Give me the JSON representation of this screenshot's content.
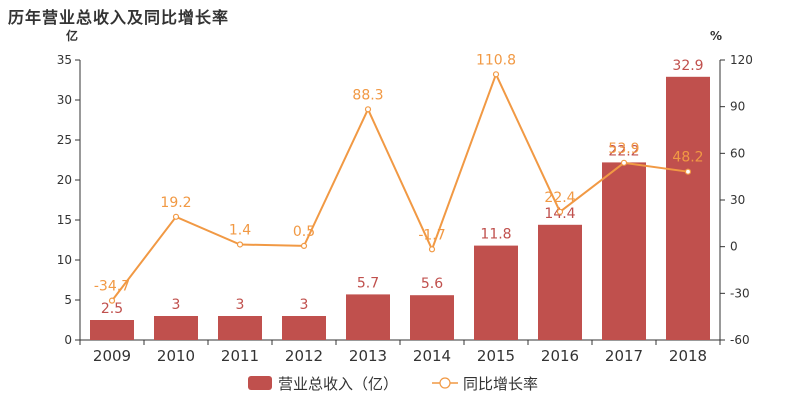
{
  "title": "历年营业总收入及同比增长率",
  "chart_data": {
    "type": "bar",
    "categories": [
      "2009",
      "2010",
      "2011",
      "2012",
      "2013",
      "2014",
      "2015",
      "2016",
      "2017",
      "2018"
    ],
    "series": [
      {
        "name": "营业总收入（亿）",
        "type": "bar",
        "axis": "left",
        "values": [
          2.5,
          3,
          3,
          3,
          5.7,
          5.6,
          11.8,
          14.4,
          22.2,
          32.9
        ],
        "labels": [
          "2.5",
          "3",
          "3",
          "3",
          "5.7",
          "5.6",
          "11.8",
          "14.4",
          "22.2",
          "32.9"
        ],
        "color": "#c0504d"
      },
      {
        "name": "同比增长率",
        "type": "line",
        "axis": "right",
        "values": [
          -34.7,
          19.2,
          1.4,
          0.5,
          88.3,
          -1.7,
          110.8,
          22.4,
          53.9,
          48.2
        ],
        "labels": [
          "-34.7",
          "19.2",
          "1.4",
          "0.5",
          "88.3",
          "-1.7",
          "110.8",
          "22.4",
          "53.9",
          "48.2"
        ],
        "color": "#f19944"
      }
    ],
    "y_left": {
      "unit": "亿",
      "min": 0,
      "max": 35,
      "ticks": [
        0,
        5,
        10,
        15,
        20,
        25,
        30,
        35
      ]
    },
    "y_right": {
      "unit": "%",
      "min": -60,
      "max": 120,
      "ticks": [
        -60,
        -30,
        0,
        30,
        60,
        90,
        120
      ]
    },
    "grid": false,
    "legend": "bottom"
  }
}
